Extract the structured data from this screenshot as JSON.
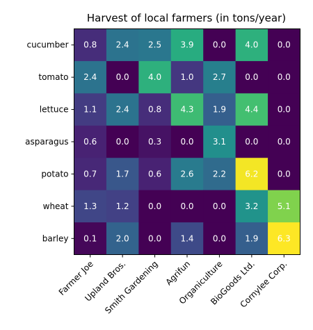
{
  "chart_data": {
    "type": "heatmap",
    "title": "Harvest of local farmers (in tons/year)",
    "rows": [
      "cucumber",
      "tomato",
      "lettuce",
      "asparagus",
      "potato",
      "wheat",
      "barley"
    ],
    "columns": [
      "Farmer Joe",
      "Upland Bros.",
      "Smith Gardening",
      "Agrifun",
      "Organiculture",
      "BioGoods Ltd.",
      "Cornylee Corp."
    ],
    "values": [
      [
        0.8,
        2.4,
        2.5,
        3.9,
        0.0,
        4.0,
        0.0
      ],
      [
        2.4,
        0.0,
        4.0,
        1.0,
        2.7,
        0.0,
        0.0
      ],
      [
        1.1,
        2.4,
        0.8,
        4.3,
        1.9,
        4.4,
        0.0
      ],
      [
        0.6,
        0.0,
        0.3,
        0.0,
        3.1,
        0.0,
        0.0
      ],
      [
        0.7,
        1.7,
        0.6,
        2.6,
        2.2,
        6.2,
        0.0
      ],
      [
        1.3,
        1.2,
        0.0,
        0.0,
        0.0,
        3.2,
        5.1
      ],
      [
        0.1,
        2.0,
        0.0,
        1.4,
        0.0,
        1.9,
        6.3
      ]
    ],
    "value_range": [
      0.0,
      6.3
    ],
    "colormap": "viridis",
    "cell_text_color": "#ffffff",
    "grid": false
  }
}
